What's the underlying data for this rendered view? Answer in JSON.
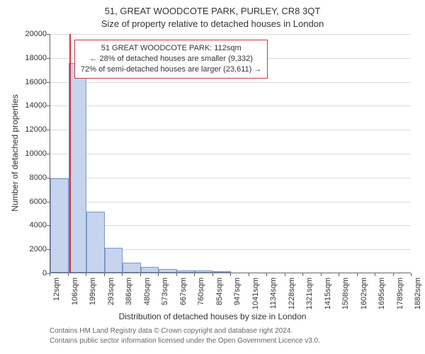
{
  "chart": {
    "type": "histogram",
    "title_line1": "51, GREAT WOODCOTE PARK, PURLEY, CR8 3QT",
    "title_line2": "Size of property relative to detached houses in London",
    "ylabel": "Number of detached properties",
    "xlabel": "Distribution of detached houses by size in London",
    "ylim": [
      0,
      20000
    ],
    "ytick_step": 2000,
    "yticks": [
      0,
      2000,
      4000,
      6000,
      8000,
      10000,
      12000,
      14000,
      16000,
      18000,
      20000
    ],
    "xticks": [
      "12sqm",
      "106sqm",
      "199sqm",
      "293sqm",
      "386sqm",
      "480sqm",
      "573sqm",
      "667sqm",
      "760sqm",
      "854sqm",
      "947sqm",
      "1041sqm",
      "1134sqm",
      "1228sqm",
      "1321sqm",
      "1415sqm",
      "1508sqm",
      "1602sqm",
      "1695sqm",
      "1789sqm",
      "1882sqm"
    ],
    "bars": [
      {
        "x": 12,
        "count": 7900
      },
      {
        "x": 106,
        "count": 17500
      },
      {
        "x": 199,
        "count": 5100
      },
      {
        "x": 293,
        "count": 2050
      },
      {
        "x": 386,
        "count": 850
      },
      {
        "x": 480,
        "count": 470
      },
      {
        "x": 573,
        "count": 320
      },
      {
        "x": 667,
        "count": 200
      },
      {
        "x": 760,
        "count": 150
      },
      {
        "x": 854,
        "count": 100
      },
      {
        "x": 947,
        "count": 0
      },
      {
        "x": 1041,
        "count": 0
      },
      {
        "x": 1134,
        "count": 0
      },
      {
        "x": 1228,
        "count": 0
      },
      {
        "x": 1321,
        "count": 0
      },
      {
        "x": 1415,
        "count": 0
      },
      {
        "x": 1508,
        "count": 0
      },
      {
        "x": 1602,
        "count": 0
      },
      {
        "x": 1695,
        "count": 0
      },
      {
        "x": 1789,
        "count": 0
      }
    ],
    "x_domain": [
      12,
      1882
    ],
    "bar_fill": "#c6d4ee",
    "bar_stroke": "#7a97c9",
    "grid_color": "#d9d9d9",
    "background_color": "#ffffff",
    "marker": {
      "value_sqm": 112,
      "color": "#cc3344",
      "line_width": 2
    },
    "callout": {
      "line1": "51 GREAT WOODCOTE PARK: 112sqm",
      "line2": "← 28% of detached houses are smaller (9,332)",
      "line3": "72% of semi-detached houses are larger (23,611) →",
      "border_color": "#cc3344",
      "bg": "#ffffff"
    },
    "footer_line1": "Contains HM Land Registry data © Crown copyright and database right 2024.",
    "footer_line2": "Contains public sector information licensed under the Open Government Licence v3.0.",
    "title_fontsize": 13,
    "label_fontsize": 12,
    "tick_fontsize": 11,
    "footer_fontsize": 10
  }
}
